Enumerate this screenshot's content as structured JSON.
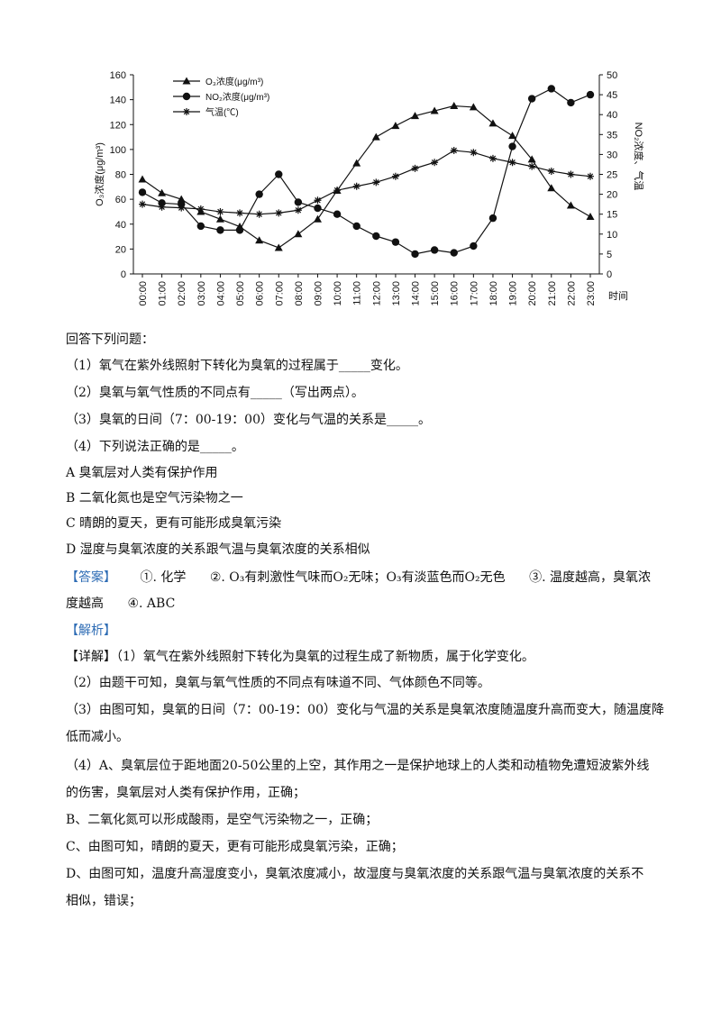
{
  "chart_data": {
    "type": "line",
    "x": [
      "00:00",
      "01:00",
      "02:00",
      "03:00",
      "04:00",
      "05:00",
      "06:00",
      "07:00",
      "08:00",
      "09:00",
      "10:00",
      "11:00",
      "12:00",
      "13:00",
      "14:00",
      "15:00",
      "16:00",
      "17:00",
      "18:00",
      "19:00",
      "20:00",
      "21:00",
      "22:00",
      "23:00"
    ],
    "xlabel": "时间",
    "ylabel_left": "O₃浓度(μg/m³)",
    "ylabel_right": "NO₂浓度、气温",
    "ylim_left": [
      0,
      160
    ],
    "ylim_right": [
      0,
      50
    ],
    "yticks_left": [
      "0",
      "20",
      "40",
      "60",
      "80",
      "100",
      "120",
      "140",
      "160"
    ],
    "yticks_right": [
      "0",
      "5",
      "10",
      "15",
      "20",
      "25",
      "30",
      "35",
      "40",
      "45",
      "50"
    ],
    "legend_position": "top-left",
    "series": [
      {
        "name": "O₃浓度(μg/m³)",
        "axis": "left",
        "marker": "triangle",
        "values": [
          76,
          65,
          60,
          50,
          44,
          38,
          27,
          21,
          32,
          44,
          67,
          89,
          110,
          119,
          127,
          131,
          135,
          134,
          121,
          111,
          92,
          69,
          55,
          46
        ]
      },
      {
        "name": "NO₂浓度(μg/m³)",
        "axis": "right",
        "marker": "circle",
        "values": [
          20.5,
          17.8,
          17.5,
          12,
          11,
          11,
          20,
          25,
          18,
          16.5,
          15,
          12,
          9.5,
          8,
          5,
          6,
          5.3,
          7,
          14,
          32,
          44,
          46.5,
          43,
          45
        ]
      },
      {
        "name": "气温(℃)",
        "axis": "right",
        "marker": "star",
        "values": [
          17.5,
          16.8,
          16.6,
          16.3,
          15.6,
          15.3,
          15,
          15.3,
          16,
          18.5,
          21,
          22,
          23,
          24.5,
          26.5,
          28,
          31,
          30.5,
          29,
          28,
          27,
          25.8,
          25,
          24.5
        ]
      }
    ],
    "colors": {
      "line": "#111111",
      "axis": "#111111"
    }
  },
  "question": {
    "intro": "回答下列问题：",
    "q1": "（1）氧气在紫外线照射下转化为臭氧的过程属于_____变化。",
    "q2": "（2）臭氧与氧气性质的不同点有_____（写出两点）。",
    "q3": "（3）臭氧的日间（7：00-19：00）变化与气温的关系是_____。",
    "q4": "（4）下列说法正确的是_____。",
    "optA": "A 臭氧层对人类有保护作用",
    "optB": "B 二氧化氮也是空气污染物之一",
    "optC": "C 晴朗的夏天，更有可能形成臭氧污染",
    "optD": "D 湿度与臭氧浓度的关系跟气温与臭氧浓度的关系相似"
  },
  "answer": {
    "label": "【答案】",
    "a1": "①. 化学",
    "a2": "②. O₃有刺激性气味而O₂无味；O₃有淡蓝色而O₂无色",
    "a3a": "③. 温度越高，臭氧浓",
    "a3b": "度越高",
    "a4": "④. ABC"
  },
  "analysis": {
    "label": "【解析】",
    "detail_label": "【详解】",
    "d1": "（1）氧气在紫外线照射下转化为臭氧的过程生成了新物质，属于化学变化。",
    "d2": "（2）由题干可知，臭氧与氧气性质的不同点有味道不同、气体颜色不同等。",
    "d3a": "（3）由图可知，臭氧的日间（7：00-19：00）变化与气温的关系是臭氧浓度随温度升高而变大，随温度降",
    "d3b": "低而减小。",
    "d4a": "（4）A、臭氧层位于距地面20-50公里的上空，其作用之一是保护地球上的人类和动植物免遭短波紫外线",
    "d4b": "的伤害，臭氧层对人类有保护作用，正确；",
    "d5": "B、二氧化氮可以形成酸雨，是空气污染物之一，正确；",
    "d6": "C、由图可知，晴朗的夏天，更有可能形成臭氧污染，正确；",
    "d7a": "D、由图可知，温度升高湿度变小，臭氧浓度减小，故湿度与臭氧浓度的关系跟气温与臭氧浓度的关系不",
    "d7b": "相似，错误；"
  }
}
